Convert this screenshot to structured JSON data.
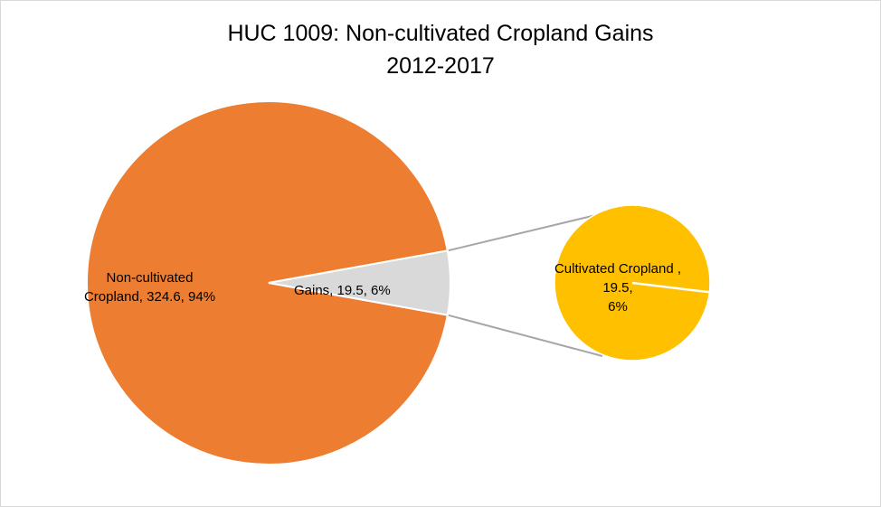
{
  "chart_data": {
    "type": "pie",
    "subtype": "pie-of-pie",
    "title": "HUC 1009: Non-cultivated Cropland Gains",
    "subtitle": "2012-2017",
    "main_pie": {
      "slices": [
        {
          "label": "Non-cultivated Cropland",
          "value": 324.6,
          "percent": "94%",
          "color": "#ED7D31"
        },
        {
          "label": "Gains",
          "value": 19.5,
          "percent": "6%",
          "color": "#D9D9D9"
        }
      ]
    },
    "secondary_pie": {
      "slices": [
        {
          "label": "Cultivated Cropland",
          "value": 19.5,
          "percent": "6%",
          "color": "#FFC000"
        }
      ]
    },
    "connector_color": "#A6A6A6",
    "slice_border_color": "#FFFFFF"
  },
  "labels": {
    "main_line1": "Non-cultivated",
    "main_line2": "Cropland, 324.6, 94%",
    "gains": "Gains, 19.5, 6%",
    "sub_line1": "Cultivated Cropland ,",
    "sub_line2": "19.5,",
    "sub_line3": "6%"
  }
}
